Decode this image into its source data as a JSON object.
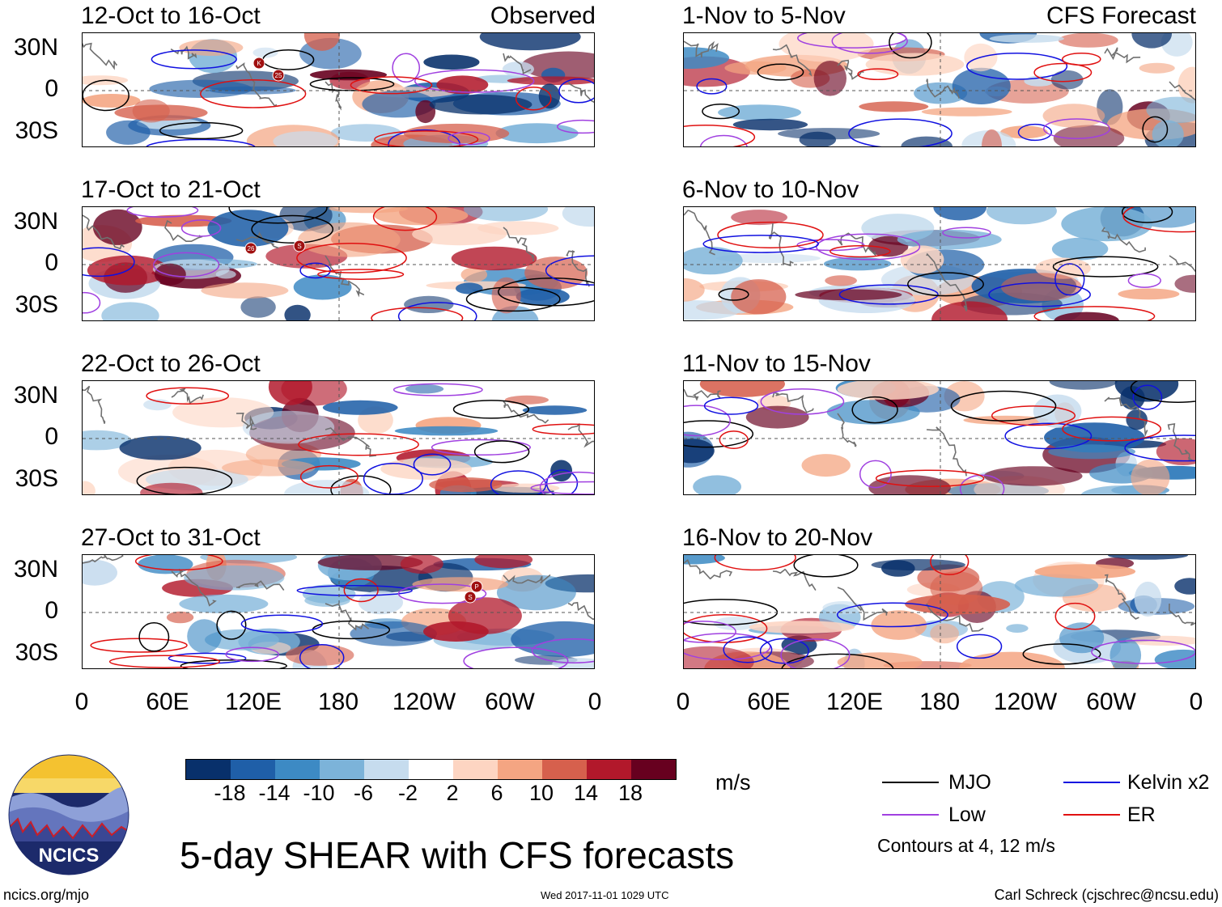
{
  "header": {
    "left_label": "Observed",
    "right_label": "CFS Forecast"
  },
  "panels_left": [
    "12-Oct to 16-Oct",
    "17-Oct to 21-Oct",
    "22-Oct to 26-Oct",
    "27-Oct to 31-Oct"
  ],
  "panels_right": [
    "1-Nov to 5-Nov",
    "6-Nov to 10-Nov",
    "11-Nov to 15-Nov",
    "16-Nov to 20-Nov"
  ],
  "chart_data": {
    "type": "heatmap",
    "title": "5-day SHEAR with CFS forecasts",
    "units": "m/s",
    "y_ticks": [
      "30N",
      "0",
      "30S"
    ],
    "x_ticks": [
      "0",
      "60E",
      "120E",
      "180",
      "120W",
      "60W",
      "0"
    ],
    "colorbar_labels": [
      "-18",
      "-14",
      "-10",
      "-6",
      "-2",
      "2",
      "6",
      "10",
      "14",
      "18"
    ],
    "colorbar_colors": [
      "#08306b",
      "#1f5fa8",
      "#3d8ac4",
      "#7cb3d9",
      "#c6dcee",
      "#ffffff",
      "#fdd5c2",
      "#f4a582",
      "#d6604d",
      "#b2182b",
      "#67001f"
    ],
    "legend": [
      {
        "label": "MJO",
        "color": "#000000"
      },
      {
        "label": "Kelvin x2",
        "color": "#1010e0"
      },
      {
        "label": "Low",
        "color": "#a040e0"
      },
      {
        "label": "ER",
        "color": "#e01010"
      }
    ],
    "contour_note": "Contours at 4, 12 m/s"
  },
  "storm_markers": [
    "K",
    "25",
    "26",
    "S",
    "P",
    "S"
  ],
  "logo": {
    "text": "NCICS"
  },
  "footer": {
    "url": "ncics.org/mjo",
    "timestamp": "Wed 2017-11-01 1029 UTC",
    "author": "Carl Schreck (cjschrec@ncsu.edu)"
  }
}
